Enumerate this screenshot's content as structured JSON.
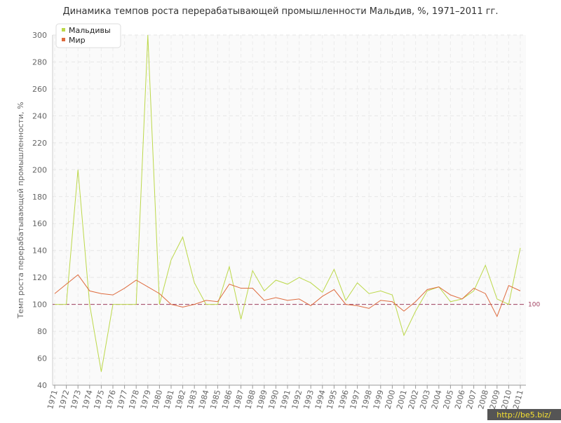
{
  "chart_data": {
    "type": "line",
    "title": "Динамика темпов роста перерабатывающей промышленности Мальдив, %, 1971–2011 гг.",
    "y_label": "Темп роста перерабатывающей промышленности, %",
    "categories": [
      "1971",
      "1972",
      "1973",
      "1974",
      "1975",
      "1976",
      "1977",
      "1978",
      "1979",
      "1980",
      "1981",
      "1982",
      "1983",
      "1984",
      "1985",
      "1986",
      "1987",
      "1988",
      "1989",
      "1990",
      "1991",
      "1992",
      "1993",
      "1994",
      "1995",
      "1996",
      "1997",
      "1998",
      "1999",
      "2000",
      "2001",
      "2002",
      "2003",
      "2004",
      "2005",
      "2006",
      "2007",
      "2008",
      "2009",
      "2010",
      "2011"
    ],
    "series": [
      {
        "name": "Мальдивы",
        "color": "#bcd84a",
        "values": [
          100,
          100,
          200,
          100,
          50,
          100,
          100,
          100,
          300,
          100,
          133,
          150,
          116,
          100,
          100,
          128,
          89,
          125,
          110,
          118,
          115,
          120,
          116,
          109,
          126,
          103,
          116,
          108,
          110,
          107,
          77,
          95,
          110,
          113,
          102,
          104,
          110,
          129,
          104,
          100,
          142
        ]
      },
      {
        "name": "Мир",
        "color": "#de6b3e",
        "values": [
          108,
          115,
          122,
          110,
          108,
          107,
          112,
          118,
          113,
          108,
          100,
          98,
          100,
          103,
          102,
          115,
          112,
          112,
          103,
          105,
          103,
          104,
          99,
          106,
          111,
          100,
          99,
          97,
          103,
          102,
          95,
          102,
          111,
          113,
          107,
          104,
          112,
          108,
          91,
          114,
          110
        ]
      }
    ],
    "reference_line": 100,
    "ylim": [
      40,
      300
    ],
    "yticks": [
      40,
      60,
      80,
      100,
      120,
      140,
      160,
      180,
      200,
      220,
      240,
      260,
      280,
      300
    ],
    "grid": true,
    "legend": "top-left",
    "watermark": "http://be5.biz/"
  }
}
